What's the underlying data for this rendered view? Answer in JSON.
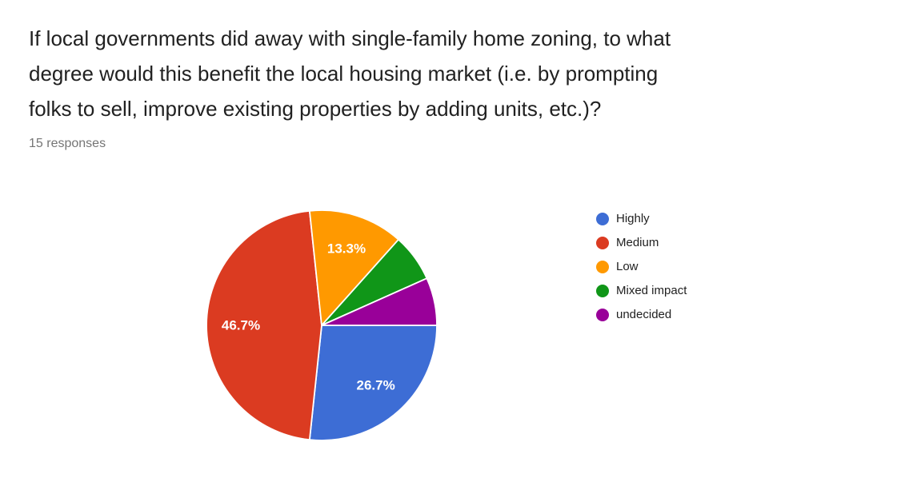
{
  "header": {
    "title": "If local governments did away with single-family home zoning, to what degree would this benefit the local housing market (i.e. by prompting folks to sell, improve existing properties by adding units, etc.)?",
    "title_lines": [
      "If local governments did away with single-family home zoning, to what",
      "degree would this benefit the local housing market (i.e. by prompting",
      "folks to sell, improve existing properties by adding units, etc.)?"
    ],
    "responses_count": "15 responses"
  },
  "chart_data": {
    "type": "pie",
    "title": "If local governments did away with single-family home zoning, to what degree would this benefit the local housing market (i.e. by prompting folks to sell, improve existing properties by adding units, etc.)?",
    "subtitle": "15 responses",
    "total_responses": 15,
    "legend_position": "right",
    "start_angle_deg": 90,
    "direction": "clockwise",
    "separator_color": "#ffffff",
    "label_color": "#ffffff",
    "slices": [
      {
        "label": "Highly",
        "percent": 26.7,
        "data_label": "26.7%",
        "show_label": true,
        "color": "#3d6dd5"
      },
      {
        "label": "Medium",
        "percent": 46.7,
        "data_label": "46.7%",
        "show_label": true,
        "color": "#db3b21"
      },
      {
        "label": "Low",
        "percent": 13.3,
        "data_label": "13.3%",
        "show_label": true,
        "color": "#ff9900"
      },
      {
        "label": "Mixed impact",
        "percent": 6.7,
        "data_label": "",
        "show_label": false,
        "color": "#109618"
      },
      {
        "label": "undecided",
        "percent": 6.7,
        "data_label": "",
        "show_label": false,
        "color": "#990099"
      }
    ]
  }
}
